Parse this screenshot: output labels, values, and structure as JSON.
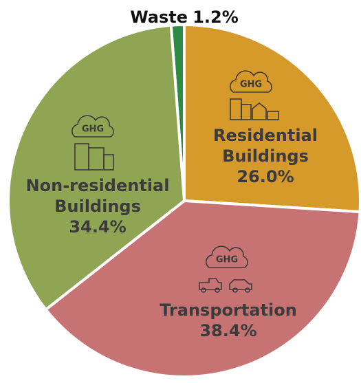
{
  "chart_data": {
    "type": "pie",
    "categories": [
      "Waste",
      "Residential Buildings",
      "Transportation",
      "Non-residential Buildings"
    ],
    "values": [
      1.2,
      26.0,
      38.4,
      34.4
    ],
    "value_labels": [
      "1.2%",
      "26.0%",
      "38.4%",
      "34.4%"
    ],
    "colors": [
      "#2e8b45",
      "#d69a2b",
      "#c87373",
      "#8fa554"
    ],
    "annotations": [
      "GHG",
      "GHG",
      "GHG"
    ]
  }
}
